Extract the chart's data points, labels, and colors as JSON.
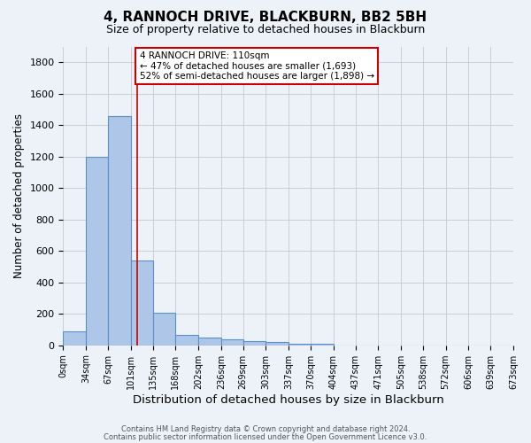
{
  "title": "4, RANNOCH DRIVE, BLACKBURN, BB2 5BH",
  "subtitle": "Size of property relative to detached houses in Blackburn",
  "xlabel": "Distribution of detached houses by size in Blackburn",
  "ylabel": "Number of detached properties",
  "bin_edges": [
    0,
    34,
    67,
    101,
    135,
    168,
    202,
    236,
    269,
    303,
    337,
    370,
    404,
    437,
    471,
    505,
    538,
    572,
    606,
    639,
    673
  ],
  "bar_heights": [
    90,
    1200,
    1460,
    540,
    205,
    65,
    50,
    40,
    28,
    20,
    10,
    8,
    0,
    0,
    0,
    0,
    0,
    0,
    0,
    0
  ],
  "bar_color": "#aec6e8",
  "bar_edge_color": "#5b8fc9",
  "bg_color": "#edf2f9",
  "grid_color": "#c8c8c8",
  "property_size": 110,
  "vline_color": "#cc0000",
  "annotation_text": "4 RANNOCH DRIVE: 110sqm\n← 47% of detached houses are smaller (1,693)\n52% of semi-detached houses are larger (1,898) →",
  "annotation_box_color": "#ffffff",
  "annotation_border_color": "#cc0000",
  "footer_line1": "Contains HM Land Registry data © Crown copyright and database right 2024.",
  "footer_line2": "Contains public sector information licensed under the Open Government Licence v3.0.",
  "tick_labels": [
    "0sqm",
    "34sqm",
    "67sqm",
    "101sqm",
    "135sqm",
    "168sqm",
    "202sqm",
    "236sqm",
    "269sqm",
    "303sqm",
    "337sqm",
    "370sqm",
    "404sqm",
    "437sqm",
    "471sqm",
    "505sqm",
    "538sqm",
    "572sqm",
    "606sqm",
    "639sqm",
    "673sqm"
  ],
  "ylim": [
    0,
    1900
  ],
  "yticks": [
    0,
    200,
    400,
    600,
    800,
    1000,
    1200,
    1400,
    1600,
    1800
  ],
  "title_fontsize": 11,
  "subtitle_fontsize": 9,
  "ylabel_fontsize": 8.5,
  "xlabel_fontsize": 9.5,
  "tick_fontsize": 7,
  "annot_fontsize": 7.5,
  "footer_fontsize": 6
}
